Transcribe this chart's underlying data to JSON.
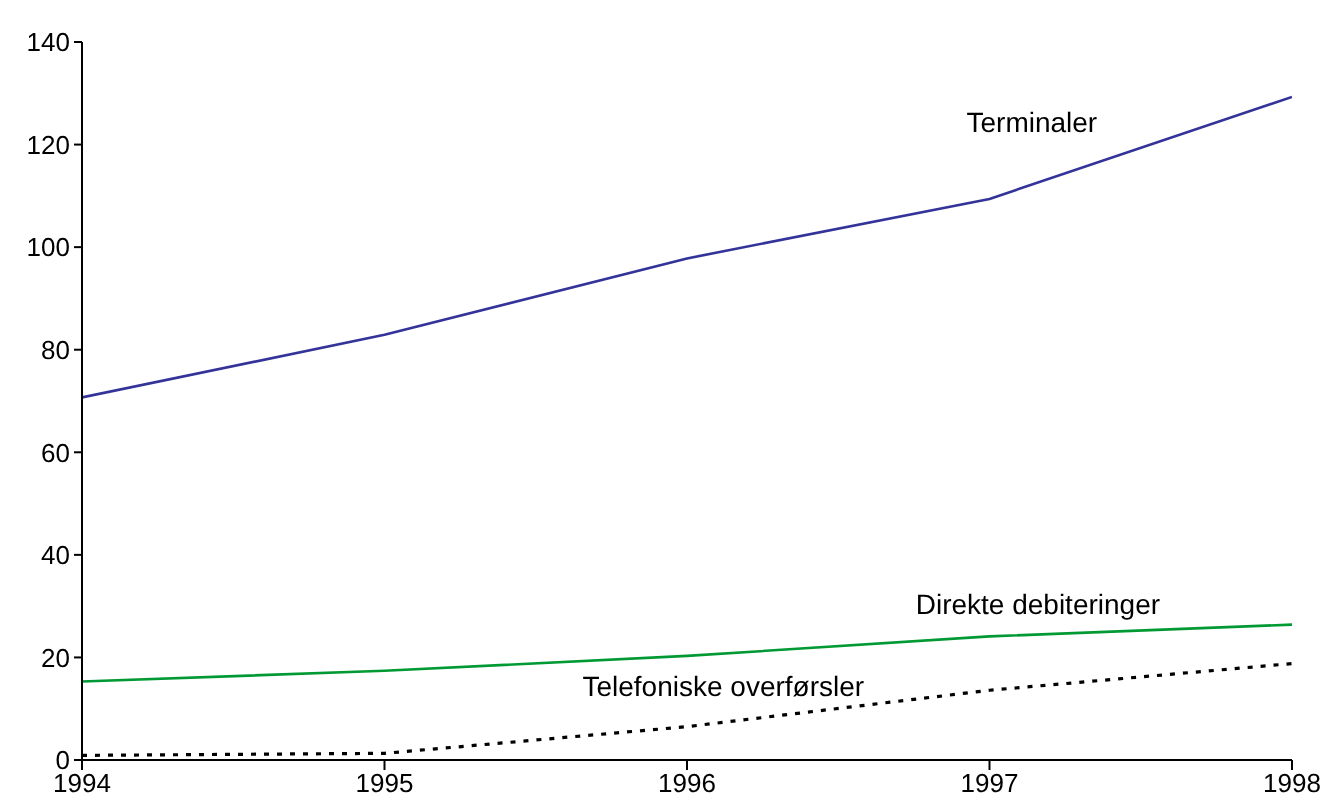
{
  "chart_data": {
    "type": "line",
    "x": [
      1994,
      1995,
      1996,
      1997,
      1998
    ],
    "xlim": [
      1994,
      1998
    ],
    "xticks": [
      1994,
      1995,
      1996,
      1997,
      1998
    ],
    "ylim": [
      0,
      140
    ],
    "yticks": [
      0,
      20,
      40,
      60,
      80,
      100,
      120,
      140
    ],
    "series": [
      {
        "name": "Terminaler",
        "color": "#333399",
        "values": [
          70.7,
          82.9,
          97.8,
          109.4,
          129.3
        ]
      },
      {
        "name": "Direkte debiteringer",
        "color": "#009933",
        "values": [
          15.3,
          17.4,
          20.3,
          24.1,
          26.4
        ]
      },
      {
        "name": "Telefoniske overførsler",
        "color": "#000000",
        "line_style": "dotted",
        "values": [
          0.9,
          1.3,
          6.5,
          13.6,
          18.8
        ]
      }
    ],
    "grid": false,
    "legend": false,
    "marker": "none",
    "line_style": "solid"
  }
}
